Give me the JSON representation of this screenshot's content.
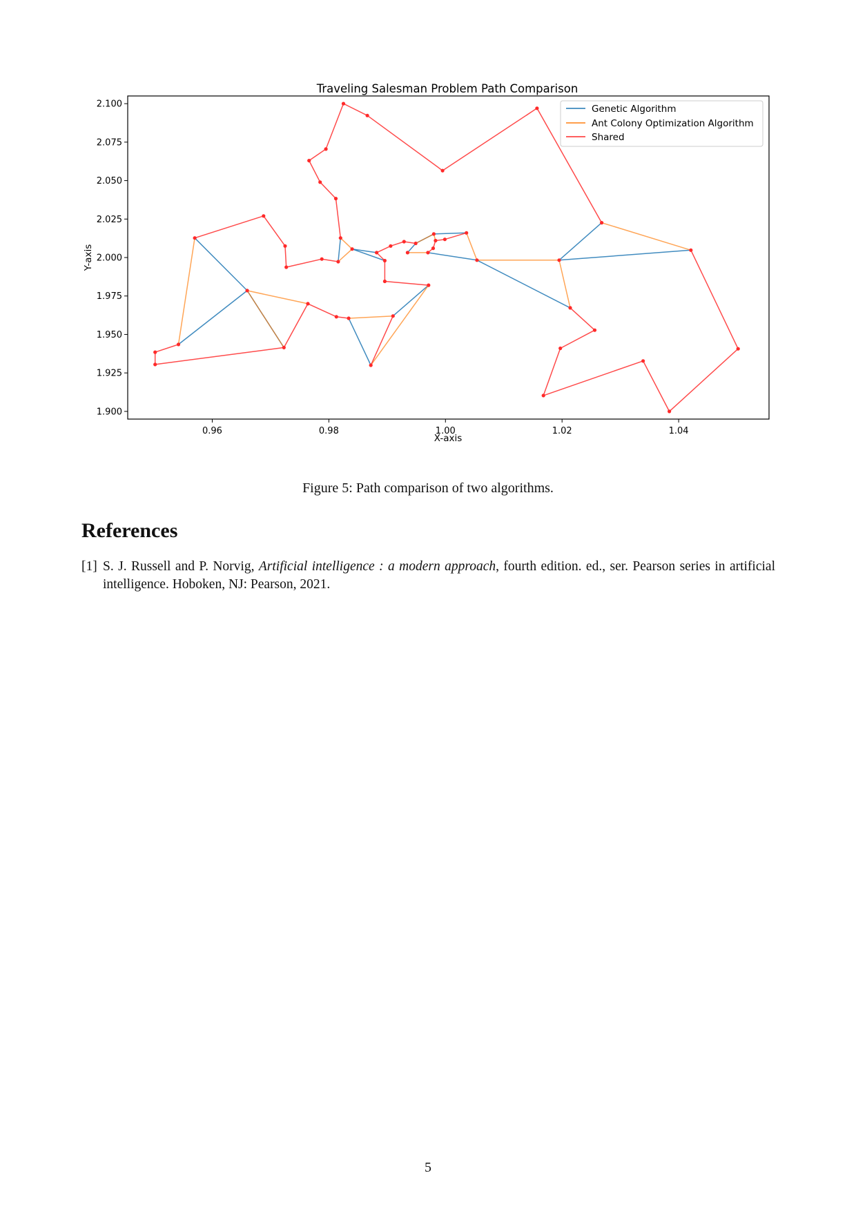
{
  "figure": {
    "caption": "Figure 5: Path comparison of two algorithms."
  },
  "chart_data": {
    "type": "line",
    "title": "Traveling Salesman Problem Path Comparison",
    "xlabel": "X-axis",
    "ylabel": "Y-axis",
    "xlim": [
      0.9455,
      1.0555
    ],
    "ylim": [
      1.895,
      2.105
    ],
    "xticks": [
      0.96,
      0.98,
      1.0,
      1.02,
      1.04
    ],
    "xtick_labels": [
      "0.96",
      "0.98",
      "1.00",
      "1.02",
      "1.04"
    ],
    "yticks": [
      1.9,
      1.925,
      1.95,
      1.975,
      2.0,
      2.025,
      2.05,
      2.075,
      2.1
    ],
    "ytick_labels": [
      "1.900",
      "1.925",
      "1.950",
      "1.975",
      "2.000",
      "2.025",
      "2.050",
      "2.075",
      "2.100"
    ],
    "grid": false,
    "legend_position": "top-right",
    "colors": {
      "genetic": "#1f77b4",
      "aco": "#ff7f0e",
      "shared": "#ff2a2a"
    },
    "series": [
      {
        "name": "Genetic Algorithm",
        "segments": [
          [
            [
              0.957,
              2.0127
            ],
            [
              0.966,
              1.9785
            ]
          ],
          [
            [
              0.966,
              1.9785
            ],
            [
              0.9542,
              1.9435
            ]
          ],
          [
            [
              0.966,
              1.9785
            ],
            [
              0.9723,
              1.9415
            ]
          ],
          [
            [
              0.9872,
              1.93
            ],
            [
              0.9834,
              1.9605
            ]
          ],
          [
            [
              0.991,
              1.962
            ],
            [
              0.9971,
              1.982
            ]
          ],
          [
            [
              0.982,
              2.0127
            ],
            [
              0.9816,
              1.9973
            ]
          ],
          [
            [
              0.984,
              2.0055
            ],
            [
              0.9882,
              2.0032
            ]
          ],
          [
            [
              0.984,
              2.0055
            ],
            [
              0.9896,
              1.998
            ]
          ],
          [
            [
              0.9935,
              2.0032
            ],
            [
              0.9949,
              2.0092
            ]
          ],
          [
            [
              0.9949,
              2.0092
            ],
            [
              0.998,
              2.0153
            ]
          ],
          [
            [
              0.998,
              2.0153
            ],
            [
              1.0036,
              2.016
            ]
          ],
          [
            [
              0.997,
              2.0032
            ],
            [
              1.0054,
              1.9983
            ]
          ],
          [
            [
              1.0054,
              1.9983
            ],
            [
              1.0214,
              1.9673
            ]
          ],
          [
            [
              1.0195,
              1.9983
            ],
            [
              1.0268,
              2.0226
            ]
          ],
          [
            [
              1.0195,
              1.9983
            ],
            [
              1.0421,
              2.0048
            ]
          ]
        ]
      },
      {
        "name": "Ant Colony Optimization Algorithm",
        "segments": [
          [
            [
              0.957,
              2.0127
            ],
            [
              0.9542,
              1.9435
            ]
          ],
          [
            [
              0.966,
              1.9785
            ],
            [
              0.9764,
              1.97
            ]
          ],
          [
            [
              0.966,
              1.9785
            ],
            [
              0.9723,
              1.9415
            ]
          ],
          [
            [
              0.9834,
              1.9605
            ],
            [
              0.991,
              1.962
            ]
          ],
          [
            [
              0.9872,
              1.93
            ],
            [
              0.9971,
              1.982
            ]
          ],
          [
            [
              0.9816,
              1.9973
            ],
            [
              0.984,
              2.0055
            ]
          ],
          [
            [
              0.982,
              2.0127
            ],
            [
              0.984,
              2.0055
            ]
          ],
          [
            [
              0.9935,
              2.0032
            ],
            [
              0.997,
              2.0032
            ]
          ],
          [
            [
              0.9949,
              2.0092
            ],
            [
              0.998,
              2.0153
            ]
          ],
          [
            [
              0.998,
              2.0153
            ],
            [
              0.9983,
              2.011
            ]
          ],
          [
            [
              1.0036,
              2.016
            ],
            [
              1.0054,
              1.9983
            ]
          ],
          [
            [
              1.0054,
              1.9983
            ],
            [
              1.0195,
              1.9983
            ]
          ],
          [
            [
              1.0195,
              1.9983
            ],
            [
              1.0214,
              1.9673
            ]
          ],
          [
            [
              1.0268,
              2.0226
            ],
            [
              1.0421,
              2.0048
            ]
          ]
        ]
      },
      {
        "name": "Shared",
        "segments": [
          [
            [
              0.957,
              2.0127
            ],
            [
              0.9688,
              2.027
            ]
          ],
          [
            [
              0.9688,
              2.027
            ],
            [
              0.9725,
              2.0075
            ]
          ],
          [
            [
              0.9725,
              2.0075
            ],
            [
              0.9727,
              1.9937
            ]
          ],
          [
            [
              0.9727,
              1.9937
            ],
            [
              0.9788,
              1.999
            ]
          ],
          [
            [
              0.9788,
              1.999
            ],
            [
              0.9816,
              1.9973
            ]
          ],
          [
            [
              0.982,
              2.0127
            ],
            [
              0.9812,
              2.0383
            ]
          ],
          [
            [
              0.9812,
              2.0383
            ],
            [
              0.9785,
              2.049
            ]
          ],
          [
            [
              0.9785,
              2.049
            ],
            [
              0.9766,
              2.063
            ]
          ],
          [
            [
              0.9766,
              2.063
            ],
            [
              0.9795,
              2.0705
            ]
          ],
          [
            [
              0.9795,
              2.0705
            ],
            [
              0.9825,
              2.1
            ]
          ],
          [
            [
              0.9825,
              2.1
            ],
            [
              0.9866,
              2.0923
            ]
          ],
          [
            [
              0.9866,
              2.0923
            ],
            [
              0.9995,
              2.0565
            ]
          ],
          [
            [
              0.9995,
              2.0565
            ],
            [
              1.0157,
              2.097
            ]
          ],
          [
            [
              1.0157,
              2.097
            ],
            [
              1.0268,
              2.0226
            ]
          ],
          [
            [
              1.0421,
              2.0048
            ],
            [
              1.0502,
              1.9407
            ]
          ],
          [
            [
              1.0502,
              1.9407
            ],
            [
              1.0384,
              1.9
            ]
          ],
          [
            [
              1.0384,
              1.9
            ],
            [
              1.0339,
              1.9328
            ]
          ],
          [
            [
              1.0339,
              1.9328
            ],
            [
              1.0168,
              1.9103
            ]
          ],
          [
            [
              1.0168,
              1.9103
            ],
            [
              1.0197,
              1.941
            ]
          ],
          [
            [
              1.0197,
              1.941
            ],
            [
              1.0256,
              1.9528
            ]
          ],
          [
            [
              1.0256,
              1.9528
            ],
            [
              1.0214,
              1.9673
            ]
          ],
          [
            [
              1.0036,
              2.016
            ],
            [
              0.9999,
              2.0118
            ]
          ],
          [
            [
              0.9999,
              2.0118
            ],
            [
              0.9983,
              2.011
            ]
          ],
          [
            [
              0.9983,
              2.011
            ],
            [
              0.9979,
              2.006
            ]
          ],
          [
            [
              0.9979,
              2.006
            ],
            [
              0.997,
              2.0032
            ]
          ],
          [
            [
              0.9949,
              2.0092
            ],
            [
              0.9929,
              2.0103
            ]
          ],
          [
            [
              0.9929,
              2.0103
            ],
            [
              0.9906,
              2.0075
            ]
          ],
          [
            [
              0.9906,
              2.0075
            ],
            [
              0.9882,
              2.0032
            ]
          ],
          [
            [
              0.9882,
              2.0032
            ],
            [
              0.9896,
              1.998
            ]
          ],
          [
            [
              0.9896,
              1.998
            ],
            [
              0.9896,
              1.9845
            ]
          ],
          [
            [
              0.9896,
              1.9845
            ],
            [
              0.9971,
              1.982
            ]
          ],
          [
            [
              0.991,
              1.962
            ],
            [
              0.9872,
              1.93
            ]
          ],
          [
            [
              0.9834,
              1.9605
            ],
            [
              0.9813,
              1.9615
            ]
          ],
          [
            [
              0.9813,
              1.9615
            ],
            [
              0.9764,
              1.97
            ]
          ],
          [
            [
              0.9764,
              1.97
            ],
            [
              0.9723,
              1.9415
            ]
          ],
          [
            [
              0.9723,
              1.9415
            ],
            [
              0.9502,
              1.9305
            ]
          ],
          [
            [
              0.9502,
              1.9305
            ],
            [
              0.9502,
              1.9385
            ]
          ],
          [
            [
              0.9502,
              1.9385
            ],
            [
              0.9542,
              1.9435
            ]
          ]
        ]
      }
    ],
    "points": [
      [
        0.957,
        2.0127
      ],
      [
        0.966,
        1.9785
      ],
      [
        0.9542,
        1.9435
      ],
      [
        0.9502,
        1.9385
      ],
      [
        0.9502,
        1.9305
      ],
      [
        0.9723,
        1.9415
      ],
      [
        0.9764,
        1.97
      ],
      [
        0.9813,
        1.9615
      ],
      [
        0.9834,
        1.9605
      ],
      [
        0.991,
        1.962
      ],
      [
        0.9872,
        1.93
      ],
      [
        0.9971,
        1.982
      ],
      [
        0.9896,
        1.9845
      ],
      [
        0.9896,
        1.998
      ],
      [
        0.9882,
        2.0032
      ],
      [
        0.984,
        2.0055
      ],
      [
        0.9816,
        1.9973
      ],
      [
        0.982,
        2.0127
      ],
      [
        0.9812,
        2.0383
      ],
      [
        0.9785,
        2.049
      ],
      [
        0.9766,
        2.063
      ],
      [
        0.9795,
        2.0705
      ],
      [
        0.9825,
        2.1
      ],
      [
        0.9866,
        2.0923
      ],
      [
        0.9995,
        2.0565
      ],
      [
        1.0157,
        2.097
      ],
      [
        1.0268,
        2.0226
      ],
      [
        1.0421,
        2.0048
      ],
      [
        1.0502,
        1.9407
      ],
      [
        1.0384,
        1.9
      ],
      [
        1.0339,
        1.9328
      ],
      [
        1.0168,
        1.9103
      ],
      [
        1.0197,
        1.941
      ],
      [
        1.0256,
        1.9528
      ],
      [
        1.0214,
        1.9673
      ],
      [
        1.0195,
        1.9983
      ],
      [
        1.0054,
        1.9983
      ],
      [
        1.0036,
        2.016
      ],
      [
        0.9999,
        2.0118
      ],
      [
        0.9983,
        2.011
      ],
      [
        0.9979,
        2.006
      ],
      [
        0.997,
        2.0032
      ],
      [
        0.9935,
        2.0032
      ],
      [
        0.9949,
        2.0092
      ],
      [
        0.9929,
        2.0103
      ],
      [
        0.9906,
        2.0075
      ],
      [
        0.998,
        2.0153
      ],
      [
        0.9725,
        2.0075
      ],
      [
        0.9688,
        2.027
      ],
      [
        0.9727,
        1.9937
      ],
      [
        0.9788,
        1.999
      ]
    ]
  },
  "references": {
    "heading": "References",
    "items": [
      {
        "number": "[1]",
        "authors": "S. J. Russell and P. Norvig, ",
        "title": "Artificial intelligence : a modern approach",
        "rest": ", fourth edition. ed., ser. Pearson series in artificial intelligence.   Hoboken, NJ: Pearson, 2021."
      }
    ]
  },
  "page": {
    "number": "5"
  }
}
